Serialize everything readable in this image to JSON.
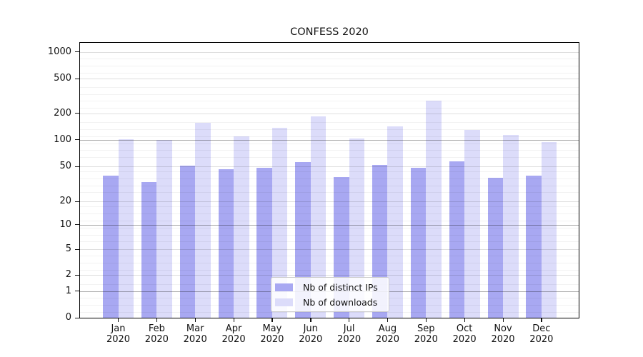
{
  "title": "CONFESS 2020",
  "chart_data": {
    "type": "bar",
    "title": "CONFESS 2020",
    "categories": [
      "Jan 2020",
      "Feb 2020",
      "Mar 2020",
      "Apr 2020",
      "May 2020",
      "Jun 2020",
      "Jul 2020",
      "Aug 2020",
      "Sep 2020",
      "Oct 2020",
      "Nov 2020",
      "Dec 2020"
    ],
    "series": [
      {
        "name": "Nb of distinct IPs",
        "color": "#a8a8f2",
        "values": [
          39,
          33,
          51,
          46,
          48,
          56,
          38,
          52,
          48,
          57,
          37,
          39
        ]
      },
      {
        "name": "Nb of downloads",
        "color": "#dcdcfa",
        "values": [
          101,
          99,
          154,
          108,
          137,
          183,
          102,
          142,
          278,
          130,
          113,
          93
        ]
      }
    ],
    "yticks": [
      0,
      1,
      2,
      5,
      10,
      20,
      50,
      100,
      200,
      500,
      1000
    ],
    "ylim": [
      0,
      1000
    ],
    "yscale": "log-like with 0 baseline",
    "grid": true,
    "legend_position": "inside bottom-center"
  }
}
